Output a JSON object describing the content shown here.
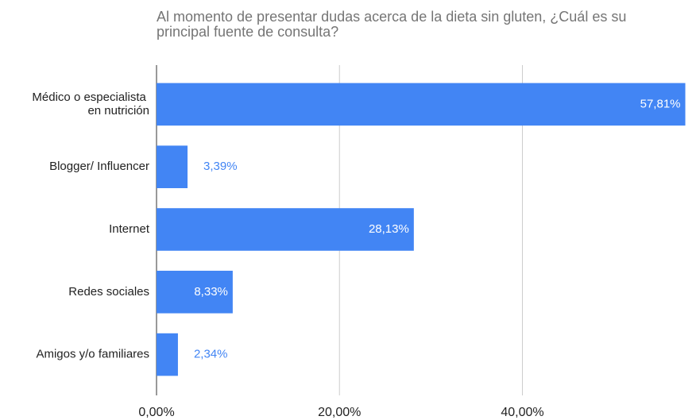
{
  "chart_data": {
    "type": "bar",
    "orientation": "horizontal",
    "title": "Al momento de presentar dudas acerca de la dieta sin gluten, ¿Cuál es su principal fuente de consulta?",
    "categories": [
      "Médico o especialista en nutrición",
      "Blogger/ Influencer",
      "Internet",
      "Redes sociales",
      "Amigos y/o familiares"
    ],
    "values": [
      57.81,
      3.39,
      28.13,
      8.33,
      2.34
    ],
    "value_labels": [
      "57,81%",
      "3,39%",
      "28,13%",
      "8,33%",
      "2,34%"
    ],
    "color": "#4285f4",
    "xlim": [
      0,
      58.2
    ],
    "xticks": [
      {
        "value": 0,
        "label": "0,00%"
      },
      {
        "value": 20,
        "label": "20,00%"
      },
      {
        "value": 40,
        "label": "40,00%"
      }
    ],
    "grid": true
  }
}
